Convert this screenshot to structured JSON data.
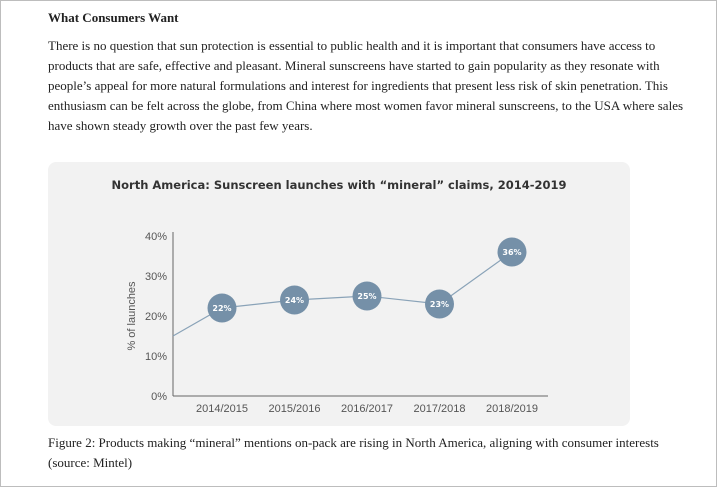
{
  "article": {
    "heading": "What Consumers Want",
    "paragraph": "There is no question that sun protection is essential to public health and it is important that consumers have access to products that are safe, effective and pleasant. Mineral sunscreens have started to gain popularity as they resonate with people’s appeal for more natural formulations and interest for ingredients that present less risk of skin penetration. This enthusiasm can be felt across the globe, from China where most women favor mineral sunscreens, to the USA where sales have shown steady growth over the past few years.",
    "caption": "Figure 2: Products making “mineral” mentions on-pack are rising in North America, aligning with consumer interests (source: Mintel)"
  },
  "colors": {
    "marker": "#7590a8",
    "line": "#8aa3b8",
    "card": "#f2f2f2"
  },
  "chart_data": {
    "type": "line",
    "title": "North America: Sunscreen launches with “mineral” claims, 2014-2019",
    "xlabel": "",
    "ylabel": "% of launches",
    "categories": [
      "2014/2015",
      "2015/2016",
      "2016/2017",
      "2017/2018",
      "2018/2019"
    ],
    "values": [
      22,
      24,
      25,
      23,
      36
    ],
    "data_labels": [
      "22%",
      "24%",
      "25%",
      "23%",
      "36%"
    ],
    "line_starts_at_value": 15,
    "ylim": [
      0,
      40
    ],
    "yticks": [
      0,
      10,
      20,
      30,
      40
    ],
    "ytick_labels": [
      "0%",
      "10%",
      "20%",
      "30%",
      "40%"
    ],
    "grid": false,
    "legend": "none"
  }
}
